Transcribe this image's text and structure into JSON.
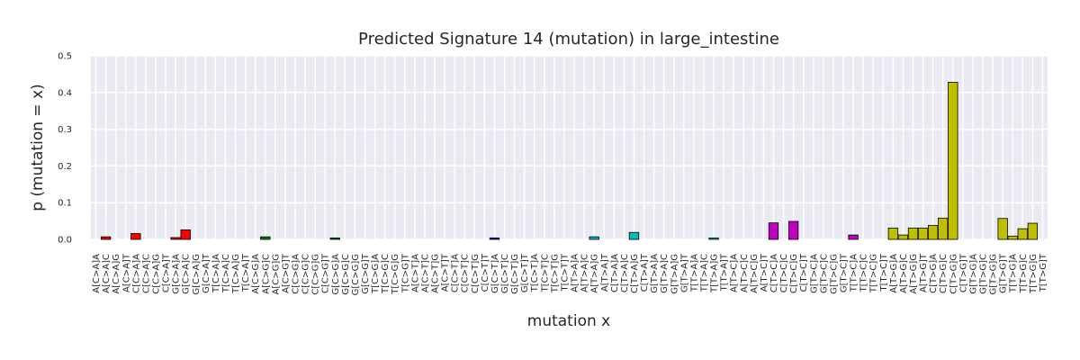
{
  "chart_data": {
    "type": "bar",
    "title": "Predicted Signature 14 (mutation) in large_intestine",
    "xlabel": "mutation x",
    "ylabel": "p (mutation = x)",
    "ylim": [
      0,
      0.5
    ],
    "yticks": [
      "0.0",
      "0.1",
      "0.2",
      "0.3",
      "0.4",
      "0.5"
    ],
    "grid": true,
    "background": "#eaeaf2",
    "categories": [
      "A[C>A]A",
      "A[C>A]C",
      "A[C>A]G",
      "A[C>A]T",
      "C[C>A]A",
      "C[C>A]C",
      "C[C>A]G",
      "C[C>A]T",
      "G[C>A]A",
      "G[C>A]C",
      "G[C>A]G",
      "G[C>A]T",
      "T[C>A]A",
      "T[C>A]C",
      "T[C>A]G",
      "T[C>A]T",
      "A[C>G]A",
      "A[C>G]C",
      "A[C>G]G",
      "A[C>G]T",
      "C[C>G]A",
      "C[C>G]C",
      "C[C>G]G",
      "C[C>G]T",
      "G[C>G]A",
      "G[C>G]C",
      "G[C>G]G",
      "G[C>G]T",
      "T[C>G]A",
      "T[C>G]C",
      "T[C>G]G",
      "T[C>G]T",
      "A[C>T]A",
      "A[C>T]C",
      "A[C>T]G",
      "A[C>T]T",
      "C[C>T]A",
      "C[C>T]C",
      "C[C>T]G",
      "C[C>T]T",
      "G[C>T]A",
      "G[C>T]C",
      "G[C>T]G",
      "G[C>T]T",
      "T[C>T]A",
      "T[C>T]C",
      "T[C>T]G",
      "T[C>T]T",
      "A[T>A]A",
      "A[T>A]C",
      "A[T>A]G",
      "A[T>A]T",
      "C[T>A]A",
      "C[T>A]C",
      "C[T>A]G",
      "C[T>A]T",
      "G[T>A]A",
      "G[T>A]C",
      "G[T>A]G",
      "G[T>A]T",
      "T[T>A]A",
      "T[T>A]C",
      "T[T>A]G",
      "T[T>A]T",
      "A[T>C]A",
      "A[T>C]C",
      "A[T>C]G",
      "A[T>C]T",
      "C[T>C]A",
      "C[T>C]C",
      "C[T>C]G",
      "C[T>C]T",
      "G[T>C]A",
      "G[T>C]C",
      "G[T>C]G",
      "G[T>C]T",
      "T[T>C]A",
      "T[T>C]C",
      "T[T>C]G",
      "T[T>C]T",
      "A[T>G]A",
      "A[T>G]C",
      "A[T>G]G",
      "A[T>G]T",
      "C[T>G]A",
      "C[T>G]C",
      "C[T>G]G",
      "C[T>G]T",
      "G[T>G]A",
      "G[T>G]C",
      "G[T>G]G",
      "G[T>G]T",
      "T[T>G]A",
      "T[T>G]C",
      "T[T>G]G",
      "T[T>G]T"
    ],
    "values": [
      0,
      0.007,
      0,
      0,
      0.016,
      0,
      0,
      0,
      0.005,
      0.026,
      0,
      0,
      0,
      0,
      0,
      0,
      0,
      0.007,
      0,
      0,
      0,
      0,
      0,
      0,
      0.004,
      0,
      0,
      0,
      0,
      0,
      0,
      0,
      0,
      0,
      0,
      0,
      0,
      0,
      0,
      0,
      0.004,
      0,
      0,
      0,
      0,
      0,
      0,
      0,
      0,
      0,
      0.007,
      0,
      0,
      0,
      0.019,
      0,
      0,
      0,
      0,
      0,
      0,
      0,
      0.004,
      0,
      0,
      0,
      0,
      0,
      0.045,
      0,
      0.049,
      0,
      0,
      0,
      0,
      0,
      0.012,
      0,
      0,
      0,
      0.031,
      0.012,
      0.031,
      0.031,
      0.038,
      0.058,
      0.428,
      0,
      0,
      0,
      0,
      0.057,
      0.009,
      0.029,
      0.044,
      0
    ],
    "group_colors": [
      "#ff0000",
      "#008000",
      "#ff8c00",
      "#0000ff",
      "#00bfbf",
      "#bf00bf",
      "#bfbf00"
    ],
    "group_of_bar": [
      0,
      0,
      0,
      0,
      0,
      0,
      0,
      0,
      0,
      0,
      0,
      0,
      0,
      0,
      0,
      0,
      1,
      1,
      1,
      1,
      1,
      1,
      1,
      1,
      1,
      1,
      1,
      1,
      1,
      1,
      1,
      1,
      2,
      2,
      2,
      2,
      2,
      2,
      2,
      2,
      3,
      3,
      3,
      3,
      3,
      3,
      3,
      3,
      4,
      4,
      4,
      4,
      4,
      4,
      4,
      4,
      4,
      4,
      4,
      4,
      4,
      4,
      4,
      4,
      5,
      5,
      5,
      5,
      5,
      5,
      5,
      5,
      5,
      5,
      5,
      5,
      5,
      5,
      5,
      5,
      6,
      6,
      6,
      6,
      6,
      6,
      6,
      6,
      6,
      6,
      6,
      6,
      6,
      6,
      6,
      6
    ]
  }
}
